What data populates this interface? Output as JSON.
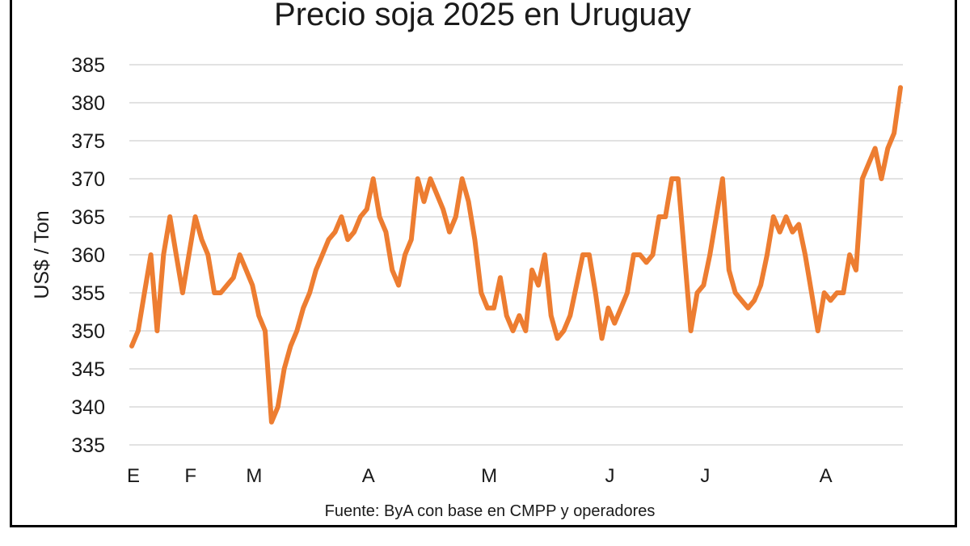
{
  "chart_data": {
    "type": "line",
    "title": "Precio soja 2025 en Uruguay",
    "ylabel": "US$ / Ton",
    "xlabel": "",
    "source": "Fuente: ByA con base en CMPP y operadores",
    "ylim": [
      335,
      385
    ],
    "yticks": [
      385,
      380,
      375,
      370,
      365,
      360,
      355,
      350,
      345,
      340,
      335
    ],
    "grid": true,
    "line_color": "#ED7D31",
    "month_labels": [
      {
        "label": "E",
        "index": 0
      },
      {
        "label": "F",
        "index": 9
      },
      {
        "label": "M",
        "index": 19
      },
      {
        "label": "A",
        "index": 37
      },
      {
        "label": "M",
        "index": 56
      },
      {
        "label": "J",
        "index": 75
      },
      {
        "label": "J",
        "index": 90
      },
      {
        "label": "A",
        "index": 109
      }
    ],
    "series": [
      {
        "values": [
          348,
          350,
          355,
          360,
          350,
          360,
          365,
          360,
          355,
          360,
          365,
          362,
          360,
          355,
          355,
          356,
          357,
          360,
          358,
          356,
          352,
          350,
          338,
          340,
          345,
          348,
          350,
          353,
          355,
          358,
          360,
          362,
          363,
          365,
          362,
          363,
          365,
          366,
          370,
          365,
          363,
          358,
          356,
          360,
          362,
          370,
          367,
          370,
          368,
          366,
          363,
          365,
          370,
          367,
          362,
          355,
          353,
          353,
          357,
          352,
          350,
          352,
          350,
          358,
          356,
          360,
          352,
          349,
          350,
          352,
          356,
          360,
          360,
          355,
          349,
          353,
          351,
          353,
          355,
          360,
          360,
          359,
          360,
          365,
          365,
          370,
          370,
          360,
          350,
          355,
          356,
          360,
          365,
          370,
          358,
          355,
          354,
          353,
          354,
          356,
          360,
          365,
          363,
          365,
          363,
          364,
          360,
          355,
          350,
          355,
          354,
          355,
          355,
          360,
          358,
          370,
          372,
          374,
          370,
          374,
          376,
          382
        ]
      }
    ]
  }
}
